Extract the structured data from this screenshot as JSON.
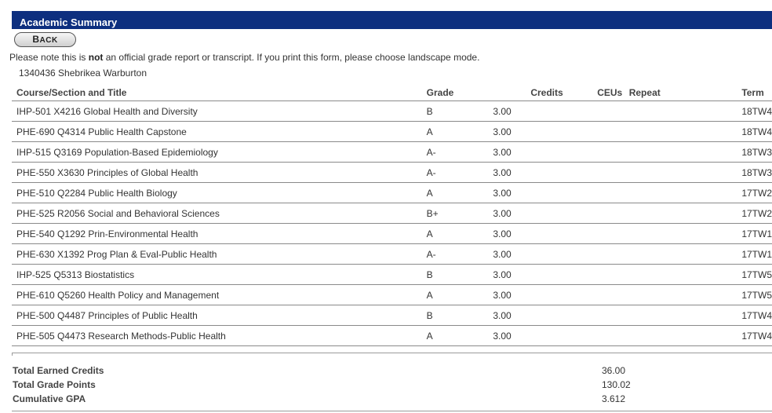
{
  "header": {
    "title": "Academic Summary"
  },
  "toolbar": {
    "back_label_first": "B",
    "back_label_rest": "ACK"
  },
  "notice": {
    "before": "Please note this is ",
    "emphasis": "not",
    "after": " an official grade report or transcript. If you print this form, please choose landscape mode."
  },
  "student": {
    "id_name": "1340436 Shebrikea Warburton"
  },
  "table": {
    "headers": {
      "course": "Course/Section and Title",
      "grade": "Grade",
      "credits": "Credits",
      "ceus": "CEUs",
      "repeat": "Repeat",
      "term": "Term"
    },
    "rows": [
      {
        "course": "IHP-501 X4216 Global Health and Diversity",
        "grade": "B",
        "credits": "3.00",
        "term": "18TW4"
      },
      {
        "course": "PHE-690 Q4314 Public Health Capstone",
        "grade": "A",
        "credits": "3.00",
        "term": "18TW4"
      },
      {
        "course": "IHP-515 Q3169 Population-Based Epidemiology",
        "grade": "A-",
        "credits": "3.00",
        "term": "18TW3"
      },
      {
        "course": "PHE-550 X3630 Principles of Global Health",
        "grade": "A-",
        "credits": "3.00",
        "term": "18TW3"
      },
      {
        "course": "PHE-510 Q2284 Public Health Biology",
        "grade": "A",
        "credits": "3.00",
        "term": "17TW2"
      },
      {
        "course": "PHE-525 R2056 Social and Behavioral Sciences",
        "grade": "B+",
        "credits": "3.00",
        "term": "17TW2"
      },
      {
        "course": "PHE-540 Q1292 Prin-Environmental Health",
        "grade": "A",
        "credits": "3.00",
        "term": "17TW1"
      },
      {
        "course": "PHE-630 X1392 Prog Plan & Eval-Public Health",
        "grade": "A-",
        "credits": "3.00",
        "term": "17TW1"
      },
      {
        "course": "IHP-525 Q5313 Biostatistics",
        "grade": "B",
        "credits": "3.00",
        "term": "17TW5"
      },
      {
        "course": "PHE-610 Q5260 Health Policy and Management",
        "grade": "A",
        "credits": "3.00",
        "term": "17TW5"
      },
      {
        "course": "PHE-500 Q4487 Principles of Public Health",
        "grade": "B",
        "credits": "3.00",
        "term": "17TW4"
      },
      {
        "course": "PHE-505 Q4473 Research Methods-Public Health",
        "grade": "A",
        "credits": "3.00",
        "term": "17TW4"
      }
    ]
  },
  "totals": [
    {
      "label": "Total Earned Credits",
      "value": "36.00"
    },
    {
      "label": "Total Grade Points",
      "value": "130.02"
    },
    {
      "label": "Cumulative GPA",
      "value": "3.612"
    }
  ]
}
